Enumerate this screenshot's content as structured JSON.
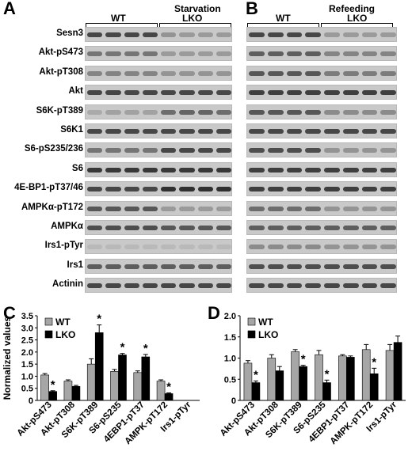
{
  "panels": {
    "A": {
      "letter": "A",
      "condition": "Starvation",
      "groups": [
        "WT",
        "LKO"
      ]
    },
    "B": {
      "letter": "B",
      "condition": "Refeeding",
      "groups": [
        "WT",
        "LKO"
      ]
    },
    "C": {
      "letter": "C"
    },
    "D": {
      "letter": "D"
    }
  },
  "blots": [
    {
      "label": "Sesn3",
      "a": [
        0.85,
        0.85,
        0.85,
        0.85,
        0.35,
        0.3,
        0.3,
        0.3
      ],
      "b": [
        0.85,
        0.85,
        0.85,
        0.85,
        0.3,
        0.3,
        0.3,
        0.3
      ]
    },
    {
      "label": "Akt-pS473",
      "a": [
        0.55,
        0.55,
        0.55,
        0.55,
        0.3,
        0.3,
        0.3,
        0.3
      ],
      "b": [
        0.7,
        0.7,
        0.7,
        0.7,
        0.45,
        0.45,
        0.45,
        0.45
      ]
    },
    {
      "label": "Akt-pT308",
      "a": [
        0.45,
        0.45,
        0.45,
        0.45,
        0.35,
        0.35,
        0.35,
        0.35
      ],
      "b": [
        0.75,
        0.75,
        0.75,
        0.75,
        0.5,
        0.5,
        0.5,
        0.5
      ]
    },
    {
      "label": "Akt",
      "a": [
        0.85,
        0.85,
        0.85,
        0.85,
        0.85,
        0.85,
        0.85,
        0.85
      ],
      "b": [
        0.9,
        0.9,
        0.9,
        0.9,
        0.9,
        0.9,
        0.9,
        0.9
      ]
    },
    {
      "label": "S6K-pT389",
      "a": [
        0.2,
        0.25,
        0.25,
        0.25,
        0.6,
        0.65,
        0.65,
        0.6
      ],
      "b": [
        0.75,
        0.75,
        0.75,
        0.75,
        0.4,
        0.4,
        0.4,
        0.4
      ]
    },
    {
      "label": "S6K1",
      "a": [
        0.85,
        0.85,
        0.85,
        0.85,
        0.85,
        0.85,
        0.85,
        0.85
      ],
      "b": [
        0.85,
        0.85,
        0.85,
        0.85,
        0.85,
        0.85,
        0.85,
        0.85
      ]
    },
    {
      "label": "S6-pS235/236",
      "a": [
        0.55,
        0.55,
        0.55,
        0.55,
        0.85,
        0.85,
        0.85,
        0.85
      ],
      "b": [
        0.8,
        0.8,
        0.8,
        0.8,
        0.35,
        0.35,
        0.35,
        0.35
      ]
    },
    {
      "label": "S6",
      "a": [
        0.95,
        0.95,
        0.95,
        0.95,
        0.95,
        0.95,
        0.95,
        0.95
      ],
      "b": [
        0.9,
        0.9,
        0.9,
        0.9,
        0.9,
        0.9,
        0.9,
        0.9
      ]
    },
    {
      "label": "4E-BP1-pT37/46",
      "a": [
        0.85,
        0.85,
        0.85,
        0.85,
        1,
        1,
        1,
        1
      ],
      "b": [
        0.9,
        0.9,
        0.9,
        0.9,
        0.9,
        0.9,
        0.9,
        0.9
      ]
    },
    {
      "label": "AMPKα-pT172",
      "a": [
        0.75,
        0.75,
        0.75,
        0.75,
        0.3,
        0.3,
        0.3,
        0.3
      ],
      "b": [
        0.6,
        0.6,
        0.6,
        0.6,
        0.35,
        0.35,
        0.35,
        0.35
      ]
    },
    {
      "label": "AMPKα",
      "a": [
        0.8,
        0.8,
        0.8,
        0.8,
        0.75,
        0.75,
        0.75,
        0.75
      ],
      "b": [
        0.7,
        0.7,
        0.7,
        0.7,
        0.7,
        0.7,
        0.7,
        0.7
      ]
    },
    {
      "label": "Irs1-pTyr",
      "a": [
        0.1,
        0.1,
        0.1,
        0.1,
        0.1,
        0.1,
        0.1,
        0.1
      ],
      "b": [
        0.4,
        0.4,
        0.4,
        0.4,
        0.35,
        0.35,
        0.35,
        0.35
      ]
    },
    {
      "label": "Irs1",
      "a": [
        0.7,
        0.7,
        0.7,
        0.7,
        0.7,
        0.7,
        0.7,
        0.7
      ],
      "b": [
        0.8,
        0.8,
        0.8,
        0.8,
        0.8,
        0.8,
        0.8,
        0.8
      ]
    },
    {
      "label": "Actinin",
      "a": [
        0.85,
        0.85,
        0.85,
        0.85,
        0.85,
        0.85,
        0.85,
        0.85
      ],
      "b": [
        0.85,
        0.85,
        0.85,
        0.85,
        0.85,
        0.85,
        0.85,
        0.85
      ]
    }
  ],
  "colors": {
    "wt": "#a6a6a6",
    "lko": "#000000",
    "blot_bg": "#c9c9c9",
    "band": "#303030"
  },
  "chart_data": [
    {
      "type": "bar",
      "title": "",
      "ylabel": "Normalized values",
      "xlabel": "",
      "ylim": [
        0,
        3.5
      ],
      "yticks": [
        "0",
        "0.5",
        "1.0",
        "1.5",
        "2.0",
        "2.5",
        "3.0",
        "3.5"
      ],
      "categories": [
        "Akt-pS473",
        "Akt-pT308",
        "S6K-pT389",
        "S6-pS235",
        "4EBP1-pT37",
        "AMPK-pT172",
        "Irs1-pTyr"
      ],
      "series": [
        {
          "name": "WT",
          "values": [
            1.05,
            0.8,
            1.5,
            1.2,
            1.15,
            0.8,
            null
          ],
          "errors": [
            0.06,
            0.05,
            0.22,
            0.08,
            0.07,
            0.05,
            null
          ]
        },
        {
          "name": "LKO",
          "values": [
            0.37,
            0.58,
            2.8,
            1.88,
            1.8,
            0.28,
            null
          ],
          "errors": [
            0.03,
            0.04,
            0.32,
            0.06,
            0.1,
            0.03,
            null
          ]
        }
      ],
      "significant": [
        true,
        false,
        true,
        true,
        true,
        true,
        false
      ],
      "legend": "top-left"
    },
    {
      "type": "bar",
      "title": "",
      "ylabel": "",
      "xlabel": "",
      "ylim": [
        0,
        2.0
      ],
      "yticks": [
        "0",
        "0.5",
        "1.0",
        "1.5",
        "2.0"
      ],
      "categories": [
        "Akt-pS473",
        "Akt-pT308",
        "S6K-pT389",
        "S6-pS235",
        "4EBP1-pT37",
        "AMPK-pT172",
        "Irs1-pTyr"
      ],
      "series": [
        {
          "name": "WT",
          "values": [
            0.88,
            1.0,
            1.15,
            1.08,
            1.05,
            1.2,
            1.18
          ],
          "errors": [
            0.06,
            0.08,
            0.05,
            0.1,
            0.03,
            0.12,
            0.14
          ]
        },
        {
          "name": "LKO",
          "values": [
            0.42,
            0.7,
            0.8,
            0.42,
            1.02,
            0.63,
            1.37
          ],
          "errors": [
            0.04,
            0.1,
            0.03,
            0.06,
            0.03,
            0.13,
            0.15
          ]
        }
      ],
      "significant": [
        true,
        false,
        true,
        true,
        false,
        true,
        false
      ],
      "legend": "top-left"
    }
  ]
}
